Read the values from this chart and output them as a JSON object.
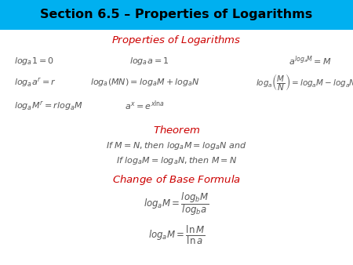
{
  "title": "Section 6.5 – Properties of Logarithms",
  "title_bg": "#00B0F0",
  "title_color": "#000000",
  "section1_color": "#CC0000",
  "theorem_color": "#CC0000",
  "cobf_color": "#CC0000",
  "math_color": "#555555",
  "fig_bg": "#00B0F0",
  "title_fontsize": 11.5,
  "section_fontsize": 9.5,
  "math_fontsize": 8.0
}
